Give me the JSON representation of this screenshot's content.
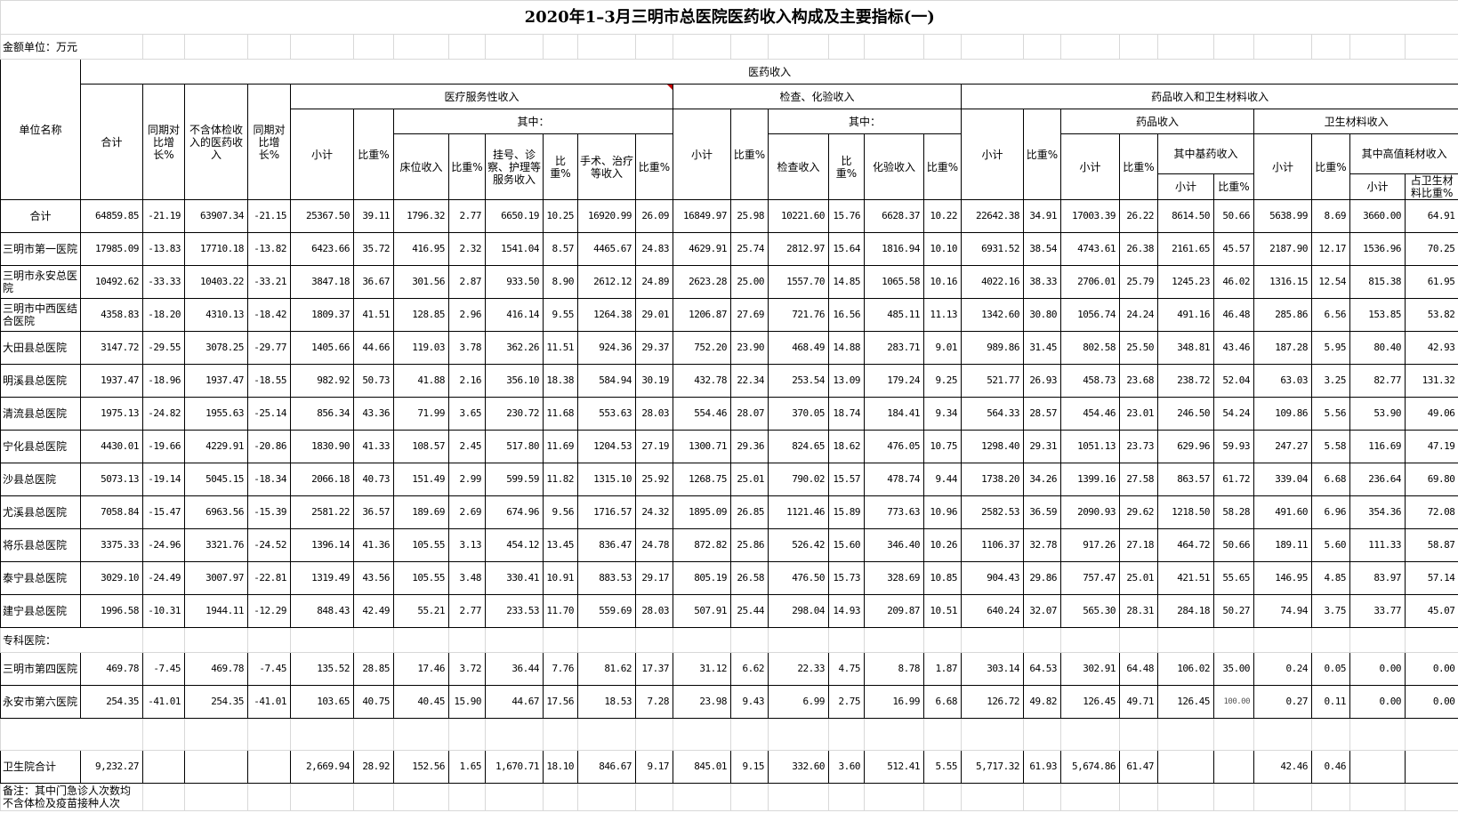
{
  "title": "2020年1–3月三明市总医院医药收入构成及主要指标(一)",
  "unit_label": "金额单位：万元",
  "headers": {
    "unit_name": "单位名称",
    "medical_income": "医药收入",
    "total": "合计",
    "yoy1": "同期对比增长%",
    "excl_checkup": "不含体检收入的医药收入",
    "yoy2": "同期对比增长%",
    "service_income": "医疗服务性收入",
    "exam_lab_income": "检查、化验收入",
    "drug_material_income": "药品收入和卫生材料收入",
    "subtotal": "小计",
    "ratio_pct": "比重%",
    "of_which": "其中：",
    "bed_income": "床位收入",
    "registration_income": "挂号、诊察、护理等服务收入",
    "surgery_income": "手术、治疗等收入",
    "exam_income": "检查收入",
    "lab_income": "化验收入",
    "drug_income": "药品收入",
    "material_income": "卫生材料收入",
    "essential_drug_income": "其中基药收入",
    "high_value_income": "其中高值耗材收入",
    "material_share": "占卫生材料比重%"
  },
  "rows": [
    {
      "name": "合计",
      "values": [
        "64859.85",
        "-21.19",
        "63907.34",
        "-21.15",
        "25367.50",
        "39.11",
        "1796.32",
        "2.77",
        "6650.19",
        "10.25",
        "16920.99",
        "26.09",
        "16849.97",
        "25.98",
        "10221.60",
        "15.76",
        "6628.37",
        "10.22",
        "22642.38",
        "34.91",
        "17003.39",
        "26.22",
        "8614.50",
        "50.66",
        "5638.99",
        "8.69",
        "3660.00",
        "64.91"
      ]
    },
    {
      "name": "三明市第一医院",
      "values": [
        "17985.09",
        "-13.83",
        "17710.18",
        "-13.82",
        "6423.66",
        "35.72",
        "416.95",
        "2.32",
        "1541.04",
        "8.57",
        "4465.67",
        "24.83",
        "4629.91",
        "25.74",
        "2812.97",
        "15.64",
        "1816.94",
        "10.10",
        "6931.52",
        "38.54",
        "4743.61",
        "26.38",
        "2161.65",
        "45.57",
        "2187.90",
        "12.17",
        "1536.96",
        "70.25"
      ]
    },
    {
      "name": "三明市永安总医院",
      "values": [
        "10492.62",
        "-33.33",
        "10403.22",
        "-33.21",
        "3847.18",
        "36.67",
        "301.56",
        "2.87",
        "933.50",
        "8.90",
        "2612.12",
        "24.89",
        "2623.28",
        "25.00",
        "1557.70",
        "14.85",
        "1065.58",
        "10.16",
        "4022.16",
        "38.33",
        "2706.01",
        "25.79",
        "1245.23",
        "46.02",
        "1316.15",
        "12.54",
        "815.38",
        "61.95"
      ]
    },
    {
      "name": "三明市中西医结合医院",
      "values": [
        "4358.83",
        "-18.20",
        "4310.13",
        "-18.42",
        "1809.37",
        "41.51",
        "128.85",
        "2.96",
        "416.14",
        "9.55",
        "1264.38",
        "29.01",
        "1206.87",
        "27.69",
        "721.76",
        "16.56",
        "485.11",
        "11.13",
        "1342.60",
        "30.80",
        "1056.74",
        "24.24",
        "491.16",
        "46.48",
        "285.86",
        "6.56",
        "153.85",
        "53.82"
      ]
    },
    {
      "name": "大田县总医院",
      "values": [
        "3147.72",
        "-29.55",
        "3078.25",
        "-29.77",
        "1405.66",
        "44.66",
        "119.03",
        "3.78",
        "362.26",
        "11.51",
        "924.36",
        "29.37",
        "752.20",
        "23.90",
        "468.49",
        "14.88",
        "283.71",
        "9.01",
        "989.86",
        "31.45",
        "802.58",
        "25.50",
        "348.81",
        "43.46",
        "187.28",
        "5.95",
        "80.40",
        "42.93"
      ]
    },
    {
      "name": "明溪县总医院",
      "values": [
        "1937.47",
        "-18.96",
        "1937.47",
        "-18.55",
        "982.92",
        "50.73",
        "41.88",
        "2.16",
        "356.10",
        "18.38",
        "584.94",
        "30.19",
        "432.78",
        "22.34",
        "253.54",
        "13.09",
        "179.24",
        "9.25",
        "521.77",
        "26.93",
        "458.73",
        "23.68",
        "238.72",
        "52.04",
        "63.03",
        "3.25",
        "82.77",
        "131.32"
      ]
    },
    {
      "name": "清流县总医院",
      "values": [
        "1975.13",
        "-24.82",
        "1955.63",
        "-25.14",
        "856.34",
        "43.36",
        "71.99",
        "3.65",
        "230.72",
        "11.68",
        "553.63",
        "28.03",
        "554.46",
        "28.07",
        "370.05",
        "18.74",
        "184.41",
        "9.34",
        "564.33",
        "28.57",
        "454.46",
        "23.01",
        "246.50",
        "54.24",
        "109.86",
        "5.56",
        "53.90",
        "49.06"
      ]
    },
    {
      "name": "宁化县总医院",
      "values": [
        "4430.01",
        "-19.66",
        "4229.91",
        "-20.86",
        "1830.90",
        "41.33",
        "108.57",
        "2.45",
        "517.80",
        "11.69",
        "1204.53",
        "27.19",
        "1300.71",
        "29.36",
        "824.65",
        "18.62",
        "476.05",
        "10.75",
        "1298.40",
        "29.31",
        "1051.13",
        "23.73",
        "629.96",
        "59.93",
        "247.27",
        "5.58",
        "116.69",
        "47.19"
      ]
    },
    {
      "name": "沙县总医院",
      "values": [
        "5073.13",
        "-19.14",
        "5045.15",
        "-18.34",
        "2066.18",
        "40.73",
        "151.49",
        "2.99",
        "599.59",
        "11.82",
        "1315.10",
        "25.92",
        "1268.75",
        "25.01",
        "790.02",
        "15.57",
        "478.74",
        "9.44",
        "1738.20",
        "34.26",
        "1399.16",
        "27.58",
        "863.57",
        "61.72",
        "339.04",
        "6.68",
        "236.64",
        "69.80"
      ]
    },
    {
      "name": "尤溪县总医院",
      "values": [
        "7058.84",
        "-15.47",
        "6963.56",
        "-15.39",
        "2581.22",
        "36.57",
        "189.69",
        "2.69",
        "674.96",
        "9.56",
        "1716.57",
        "24.32",
        "1895.09",
        "26.85",
        "1121.46",
        "15.89",
        "773.63",
        "10.96",
        "2582.53",
        "36.59",
        "2090.93",
        "29.62",
        "1218.50",
        "58.28",
        "491.60",
        "6.96",
        "354.36",
        "72.08"
      ]
    },
    {
      "name": "将乐县总医院",
      "values": [
        "3375.33",
        "-24.96",
        "3321.76",
        "-24.52",
        "1396.14",
        "41.36",
        "105.55",
        "3.13",
        "454.12",
        "13.45",
        "836.47",
        "24.78",
        "872.82",
        "25.86",
        "526.42",
        "15.60",
        "346.40",
        "10.26",
        "1106.37",
        "32.78",
        "917.26",
        "27.18",
        "464.72",
        "50.66",
        "189.11",
        "5.60",
        "111.33",
        "58.87"
      ]
    },
    {
      "name": "泰宁县总医院",
      "values": [
        "3029.10",
        "-24.49",
        "3007.97",
        "-22.81",
        "1319.49",
        "43.56",
        "105.55",
        "3.48",
        "330.41",
        "10.91",
        "883.53",
        "29.17",
        "805.19",
        "26.58",
        "476.50",
        "15.73",
        "328.69",
        "10.85",
        "904.43",
        "29.86",
        "757.47",
        "25.01",
        "421.51",
        "55.65",
        "146.95",
        "4.85",
        "83.97",
        "57.14"
      ]
    },
    {
      "name": "建宁县总医院",
      "values": [
        "1996.58",
        "-10.31",
        "1944.11",
        "-12.29",
        "848.43",
        "42.49",
        "55.21",
        "2.77",
        "233.53",
        "11.70",
        "559.69",
        "28.03",
        "507.91",
        "25.44",
        "298.04",
        "14.93",
        "209.87",
        "10.51",
        "640.24",
        "32.07",
        "565.30",
        "28.31",
        "284.18",
        "50.27",
        "74.94",
        "3.75",
        "33.77",
        "45.07"
      ]
    }
  ],
  "specialty_label": "专科医院：",
  "specialty_rows": [
    {
      "name": "三明市第四医院",
      "values": [
        "469.78",
        "-7.45",
        "469.78",
        "-7.45",
        "135.52",
        "28.85",
        "17.46",
        "3.72",
        "36.44",
        "7.76",
        "81.62",
        "17.37",
        "31.12",
        "6.62",
        "22.33",
        "4.75",
        "8.78",
        "1.87",
        "303.14",
        "64.53",
        "302.91",
        "64.48",
        "106.02",
        "35.00",
        "0.24",
        "0.05",
        "0.00",
        "0.00"
      ]
    },
    {
      "name": "永安市第六医院",
      "values": [
        "254.35",
        "-41.01",
        "254.35",
        "-41.01",
        "103.65",
        "40.75",
        "40.45",
        "15.90",
        "44.67",
        "17.56",
        "18.53",
        "7.28",
        "23.98",
        "9.43",
        "6.99",
        "2.75",
        "16.99",
        "6.68",
        "126.72",
        "49.82",
        "126.45",
        "49.71",
        "126.45",
        "100.00",
        "0.27",
        "0.11",
        "0.00",
        "0.00"
      ]
    }
  ],
  "health_center_row": {
    "name": "卫生院合计",
    "values": [
      "9,232.27",
      "",
      "",
      "",
      "2,669.94",
      "28.92",
      "152.56",
      "1.65",
      "1,670.71",
      "18.10",
      "846.67",
      "9.17",
      "845.01",
      "9.15",
      "332.60",
      "3.60",
      "512.41",
      "5.55",
      "5,717.32",
      "61.93",
      "5,674.86",
      "61.47",
      "",
      "",
      "42.46",
      "0.46",
      "",
      ""
    ]
  },
  "note": "备注：其中门急诊人次数均不含体检及疫苗接种人次",
  "colors": {
    "grid": "#d8d8d8",
    "border": "#000000",
    "comment_marker": "#c00000"
  }
}
